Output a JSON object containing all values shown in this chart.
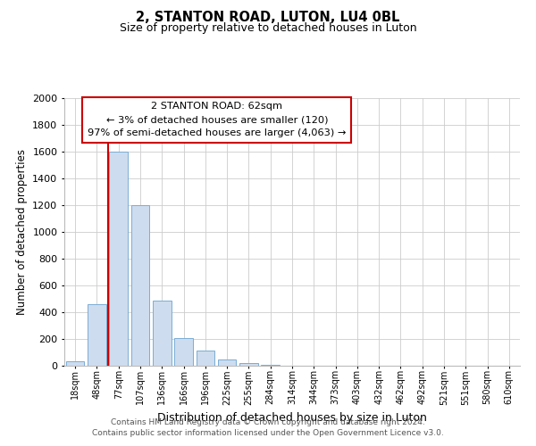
{
  "title": "2, STANTON ROAD, LUTON, LU4 0BL",
  "subtitle": "Size of property relative to detached houses in Luton",
  "xlabel": "Distribution of detached houses by size in Luton",
  "ylabel": "Number of detached properties",
  "bar_labels": [
    "18sqm",
    "48sqm",
    "77sqm",
    "107sqm",
    "136sqm",
    "166sqm",
    "196sqm",
    "225sqm",
    "255sqm",
    "284sqm",
    "314sqm",
    "344sqm",
    "373sqm",
    "403sqm",
    "432sqm",
    "462sqm",
    "492sqm",
    "521sqm",
    "551sqm",
    "580sqm",
    "610sqm"
  ],
  "bar_values": [
    35,
    460,
    1600,
    1200,
    490,
    210,
    115,
    45,
    20,
    10,
    0,
    0,
    0,
    0,
    0,
    0,
    0,
    0,
    0,
    0,
    0
  ],
  "bar_color": "#cddcee",
  "bar_edge_color": "#7badd4",
  "marker_color": "#cc0000",
  "ylim": [
    0,
    2000
  ],
  "yticks": [
    0,
    200,
    400,
    600,
    800,
    1000,
    1200,
    1400,
    1600,
    1800,
    2000
  ],
  "annotation_title": "2 STANTON ROAD: 62sqm",
  "annotation_line1": "← 3% of detached houses are smaller (120)",
  "annotation_line2": "97% of semi-detached houses are larger (4,063) →",
  "annotation_box_color": "#ffffff",
  "annotation_box_edge": "#cc0000",
  "grid_color": "#cccccc",
  "footer1": "Contains HM Land Registry data © Crown copyright and database right 2024.",
  "footer2": "Contains public sector information licensed under the Open Government Licence v3.0.",
  "bg_color": "#ffffff"
}
